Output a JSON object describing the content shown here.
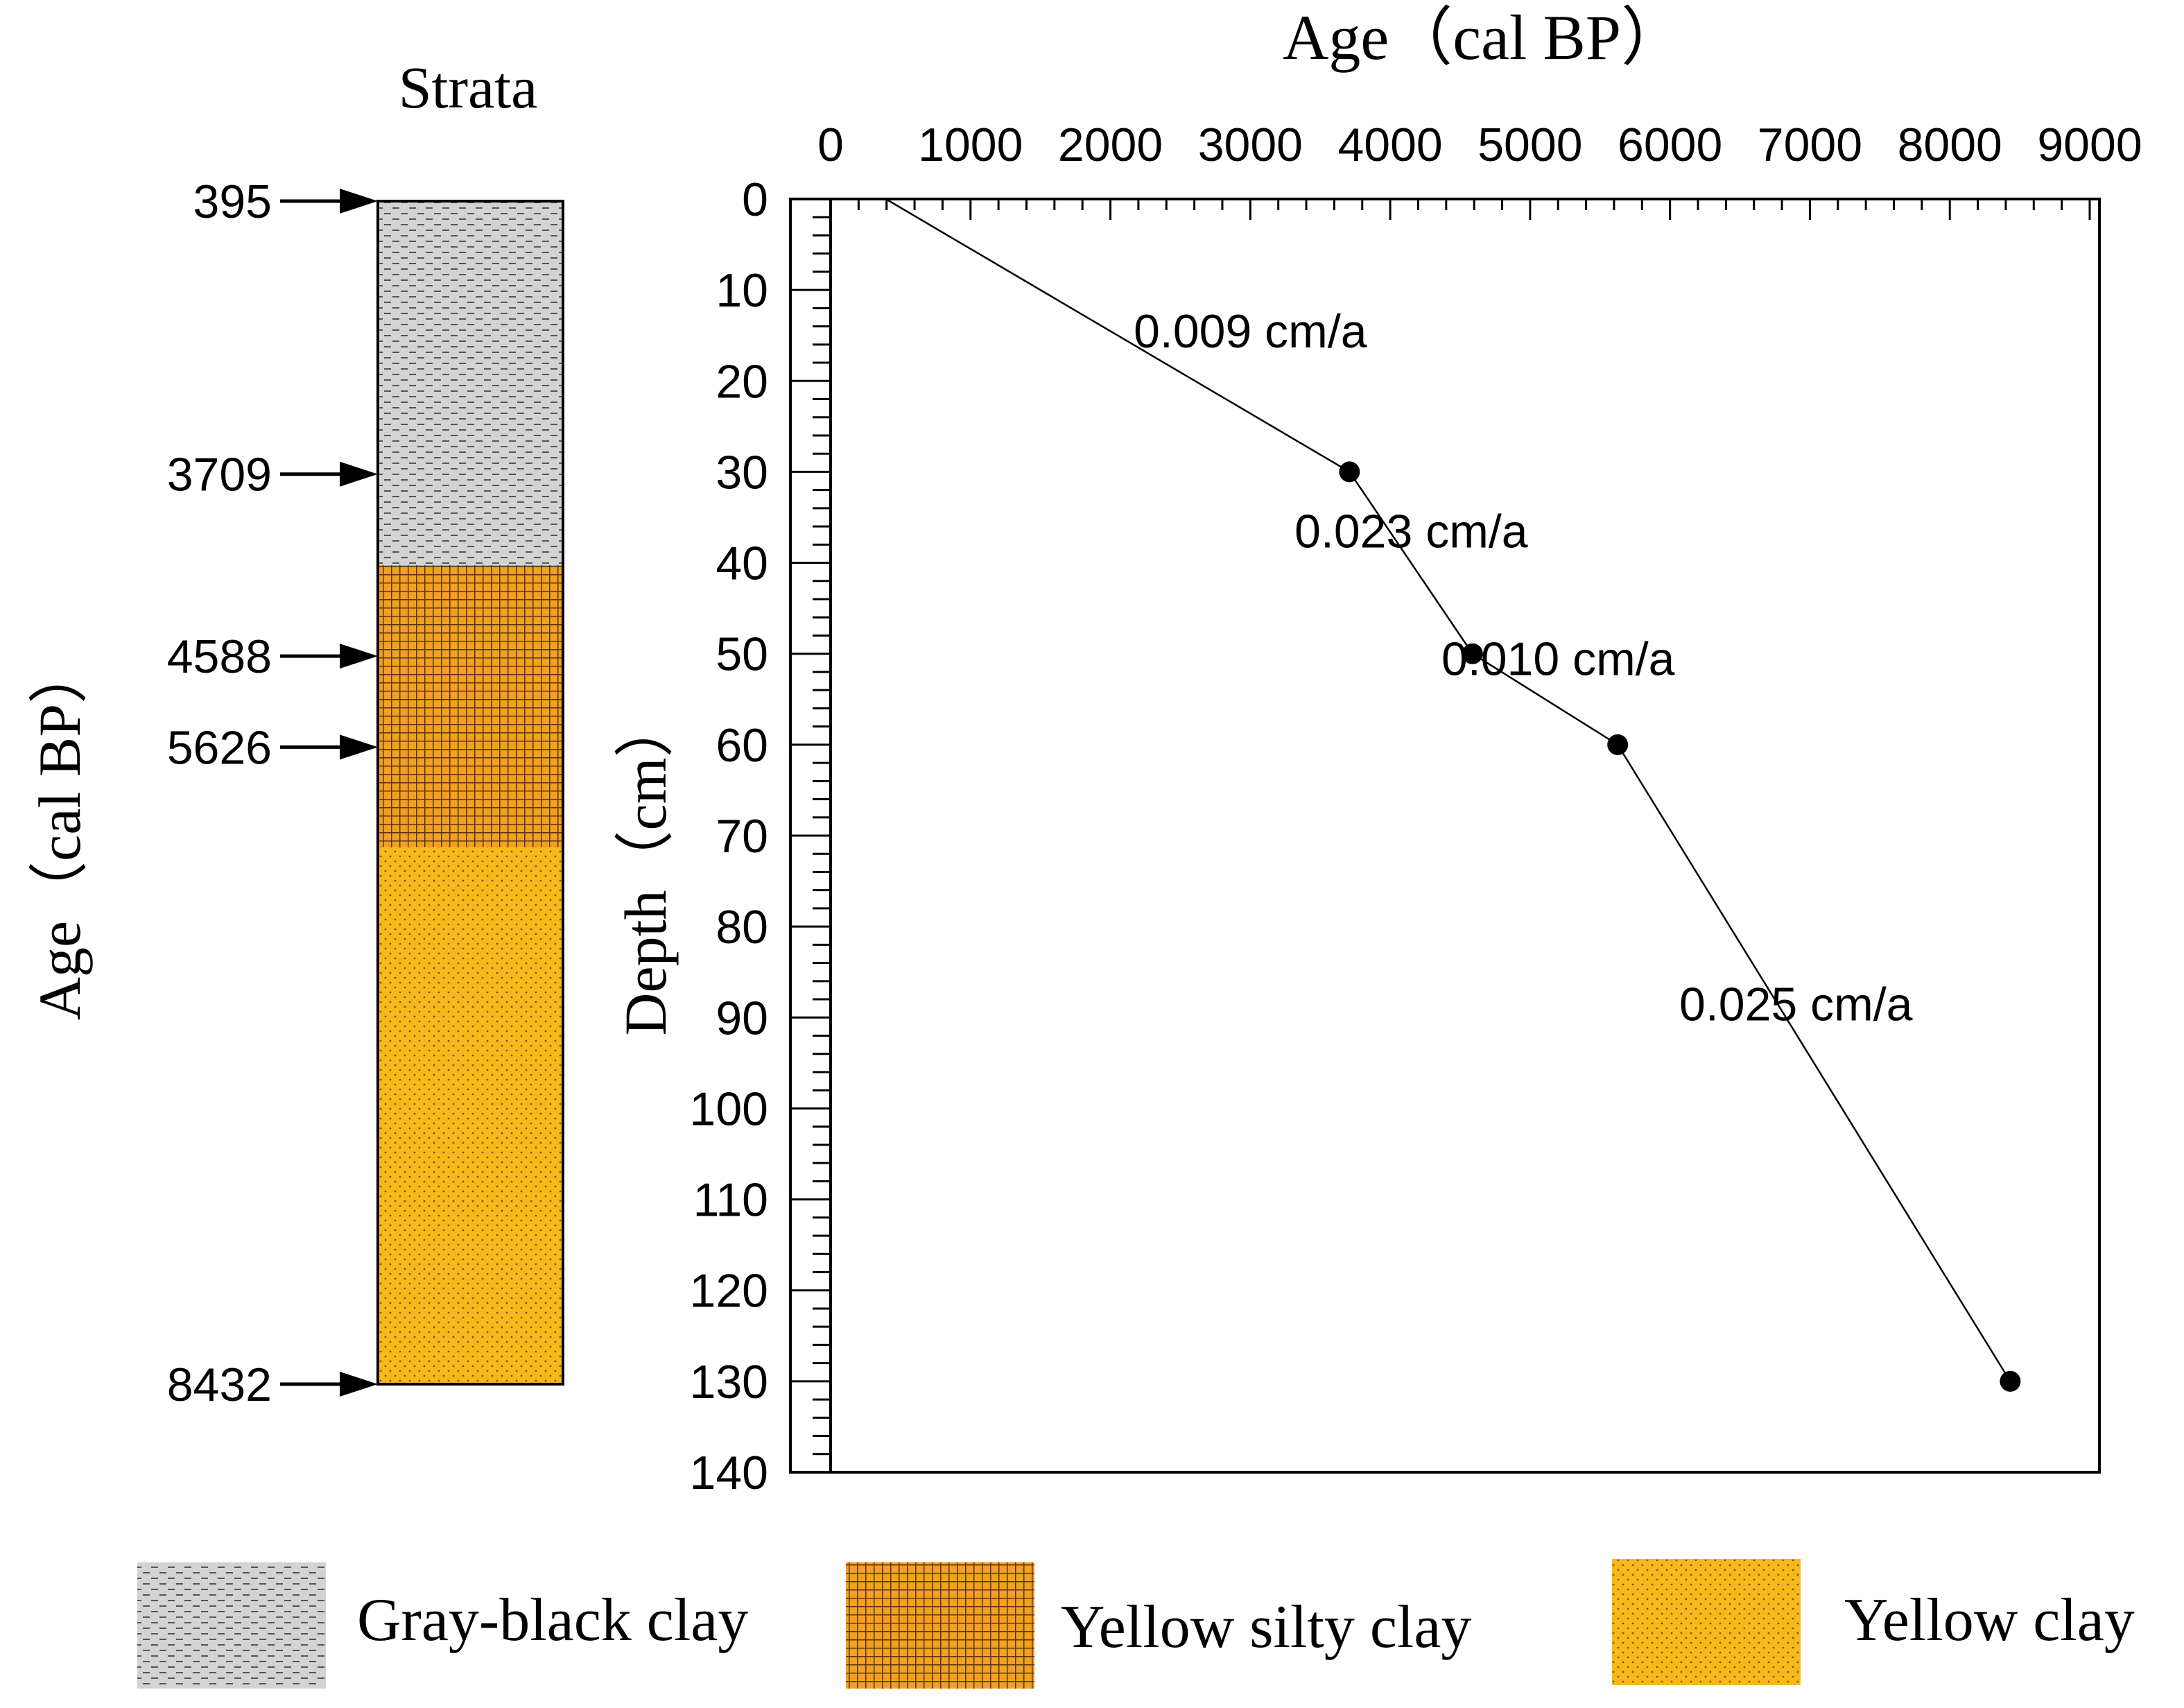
{
  "chart_data": {
    "type": "line",
    "x_axis": {
      "label": "Age（cal BP）",
      "range": [
        0,
        9000
      ],
      "ticks": [
        0,
        1000,
        2000,
        3000,
        4000,
        5000,
        6000,
        7000,
        8000,
        9000
      ],
      "position": "top"
    },
    "y_axis": {
      "label": "Depth（cm）",
      "range": [
        0,
        140
      ],
      "ticks": [
        0,
        10,
        20,
        30,
        40,
        50,
        60,
        70,
        80,
        90,
        100,
        110,
        120,
        130,
        140
      ],
      "inverted": true
    },
    "line_start": {
      "age": 395,
      "depth": 0
    },
    "points": [
      {
        "age": 3709,
        "depth": 30
      },
      {
        "age": 4588,
        "depth": 50
      },
      {
        "age": 5626,
        "depth": 60
      },
      {
        "age": 8432,
        "depth": 130
      }
    ],
    "rates": [
      {
        "text": "0.009 cm/a",
        "age": 3000,
        "depth": 14.5
      },
      {
        "text": "0.023 cm/a",
        "age": 4150,
        "depth": 36.5
      },
      {
        "text": "0.010 cm/a",
        "age": 5200,
        "depth": 50.5
      },
      {
        "text": "0.025 cm/a",
        "age": 6900,
        "depth": 88.5
      }
    ]
  },
  "strata": {
    "title": "Strata",
    "axis_label": "Age（cal BP）",
    "age_markers": [
      {
        "label": "395",
        "depth": 0
      },
      {
        "label": "3709",
        "depth": 30
      },
      {
        "label": "4588",
        "depth": 50
      },
      {
        "label": "5626",
        "depth": 60
      },
      {
        "label": "8432",
        "depth": 130
      }
    ],
    "layers": [
      {
        "name": "Gray-black clay",
        "from_depth": 0,
        "to_depth": 40
      },
      {
        "name": "Yellow silty clay",
        "from_depth": 40,
        "to_depth": 71
      },
      {
        "name": "Yellow clay",
        "from_depth": 71,
        "to_depth": 130
      }
    ]
  },
  "legend": {
    "items": [
      {
        "label": "Gray-black clay",
        "pattern": "gray-dash"
      },
      {
        "label": "Yellow silty clay",
        "pattern": "brown-grid"
      },
      {
        "label": "Yellow clay",
        "pattern": "yellow-dots"
      }
    ]
  },
  "colors": {
    "gray_fill": "#d3d3d3",
    "brown_fill": "#c8821e",
    "yellow_fill": "#f7b81c",
    "ink": "#000000"
  }
}
